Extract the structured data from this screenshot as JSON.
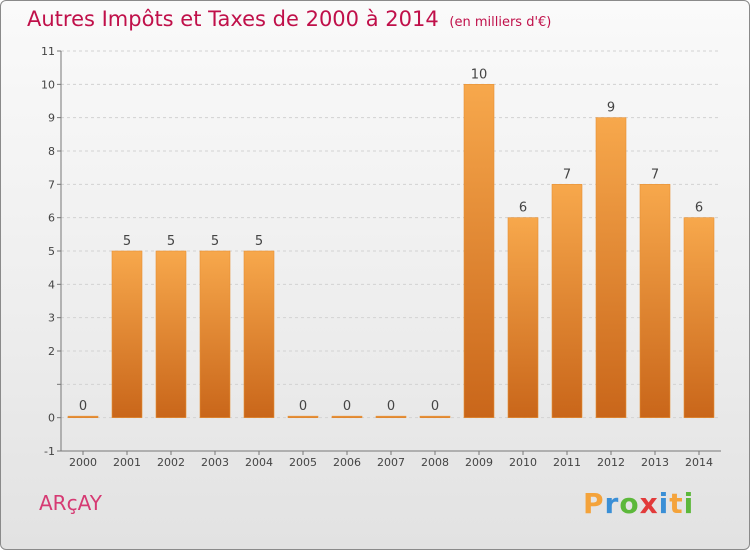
{
  "header": {
    "title": "Autres Impôts et Taxes de 2000 à 2014",
    "subtitle": "(en milliers d'€)"
  },
  "footer": {
    "commune": "ARçAY",
    "brand": "Proxiti",
    "brand_letters": [
      {
        "ch": "P",
        "color": "#f4a33b"
      },
      {
        "ch": "r",
        "color": "#3a8fd6"
      },
      {
        "ch": "o",
        "color": "#5cb83a"
      },
      {
        "ch": "x",
        "color": "#e23b3b"
      },
      {
        "ch": "i",
        "color": "#3a8fd6"
      },
      {
        "ch": "t",
        "color": "#f4a33b"
      },
      {
        "ch": "i",
        "color": "#5cb83a"
      }
    ]
  },
  "chart_data": {
    "type": "bar",
    "categories": [
      "2000",
      "2001",
      "2002",
      "2003",
      "2004",
      "2005",
      "2006",
      "2007",
      "2008",
      "2009",
      "2010",
      "2011",
      "2012",
      "2013",
      "2014"
    ],
    "values": [
      0,
      5,
      5,
      5,
      5,
      0,
      0,
      0,
      0,
      10,
      6,
      7,
      9,
      7,
      6
    ],
    "data_labels": [
      "0",
      "5",
      "5",
      "5",
      "5",
      "0",
      "0",
      "0",
      "0",
      "10",
      "6",
      "7",
      "9",
      "7",
      "6"
    ],
    "ylim": [
      -1,
      11
    ],
    "yticks": [
      "-1",
      "0",
      "",
      "2",
      "3",
      "4",
      "5",
      "6",
      "7",
      "8",
      "9",
      "10",
      "11"
    ],
    "ytick_values": [
      -1,
      0,
      1,
      2,
      3,
      4,
      5,
      6,
      7,
      8,
      9,
      10,
      11
    ],
    "grid": "horizontal dashed",
    "colors": {
      "bar_top": "#f7a84c",
      "bar_bottom": "#c9661a",
      "bar_edge": "#e69034",
      "axis": "#777777",
      "grid": "#d2d2d2",
      "text": "#444444",
      "title": "#c0104a"
    }
  }
}
